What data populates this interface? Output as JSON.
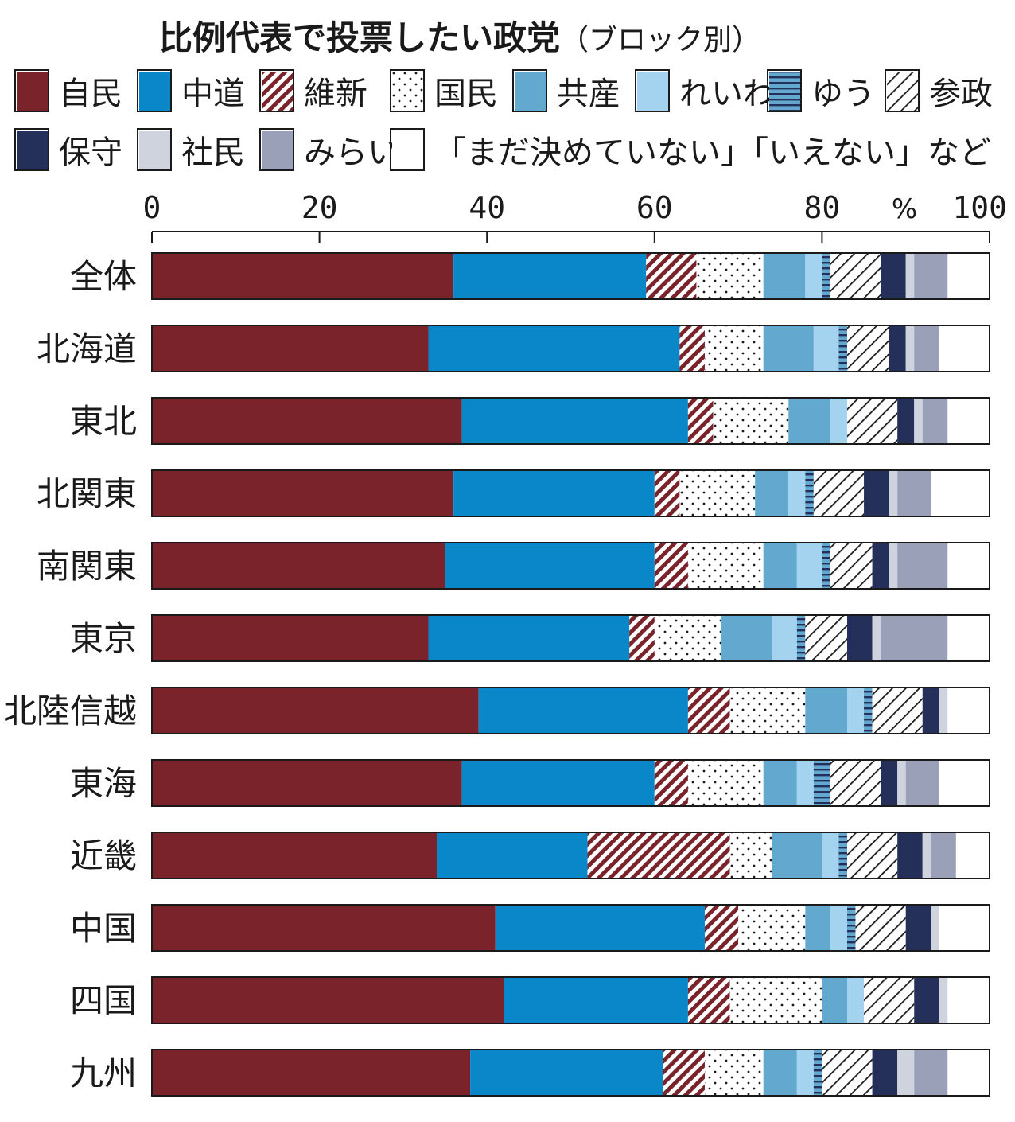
{
  "title": "比例代表で投票したい政党",
  "subtitle": "（ブロック別）",
  "chart_data": {
    "type": "bar",
    "orientation": "horizontal",
    "stacked": true,
    "title": "比例代表で投票したい政党（ブロック別）",
    "xlabel": "%",
    "xlim": [
      0,
      100
    ],
    "x_ticks": [
      "0",
      "20",
      "40",
      "60",
      "80",
      "100"
    ],
    "unit_label": "%",
    "categories": [
      "全体",
      "北海道",
      "東北",
      "北関東",
      "南関東",
      "東京",
      "北陸信越",
      "東海",
      "近畿",
      "中国",
      "四国",
      "九州"
    ],
    "series": [
      {
        "name": "自民",
        "color": "#7a232b",
        "pattern": "solid",
        "values": [
          36,
          33,
          37,
          36,
          35,
          33,
          39,
          37,
          34,
          41,
          42,
          38
        ]
      },
      {
        "name": "中道",
        "color": "#0a87c8",
        "pattern": "solid",
        "values": [
          23,
          30,
          27,
          24,
          25,
          24,
          25,
          23,
          18,
          25,
          22,
          23
        ]
      },
      {
        "name": "維新",
        "color": "#7a232b",
        "pattern": "diagonal-stripes",
        "values": [
          6,
          3,
          3,
          3,
          4,
          3,
          5,
          4,
          17,
          4,
          5,
          5
        ]
      },
      {
        "name": "国民",
        "color": "#ffffff",
        "pattern": "dots",
        "values": [
          8,
          7,
          9,
          9,
          9,
          8,
          9,
          9,
          5,
          8,
          11,
          7
        ]
      },
      {
        "name": "共産",
        "color": "#63a8cf",
        "pattern": "solid",
        "values": [
          5,
          6,
          5,
          4,
          4,
          6,
          5,
          4,
          6,
          3,
          3,
          4
        ]
      },
      {
        "name": "れいわ",
        "color": "#a4d3f0",
        "pattern": "solid",
        "values": [
          2,
          3,
          2,
          2,
          3,
          3,
          2,
          2,
          2,
          2,
          2,
          2
        ]
      },
      {
        "name": "ゆう",
        "color": "#63a8cf",
        "pattern": "horizontal-stripes",
        "values": [
          1,
          1,
          0,
          1,
          1,
          1,
          1,
          2,
          1,
          1,
          0,
          1
        ]
      },
      {
        "name": "参政",
        "color": "#ffffff",
        "pattern": "hatch",
        "values": [
          6,
          5,
          6,
          6,
          5,
          5,
          6,
          6,
          6,
          6,
          6,
          6
        ]
      },
      {
        "name": "保守",
        "color": "#24305a",
        "pattern": "solid",
        "values": [
          3,
          2,
          2,
          3,
          2,
          3,
          2,
          2,
          3,
          3,
          3,
          3
        ]
      },
      {
        "name": "社民",
        "color": "#cfd3de",
        "pattern": "solid",
        "values": [
          1,
          1,
          1,
          1,
          1,
          1,
          1,
          1,
          1,
          1,
          1,
          2
        ]
      },
      {
        "name": "みらい",
        "color": "#9aa0b8",
        "pattern": "solid",
        "values": [
          4,
          3,
          3,
          4,
          6,
          8,
          0,
          4,
          3,
          0,
          0,
          4
        ]
      },
      {
        "name": "「まだ決めていない」「いえない」など",
        "color": "#ffffff",
        "pattern": "solid",
        "values": [
          5,
          6,
          5,
          7,
          5,
          5,
          5,
          6,
          4,
          6,
          5,
          5
        ]
      }
    ]
  }
}
